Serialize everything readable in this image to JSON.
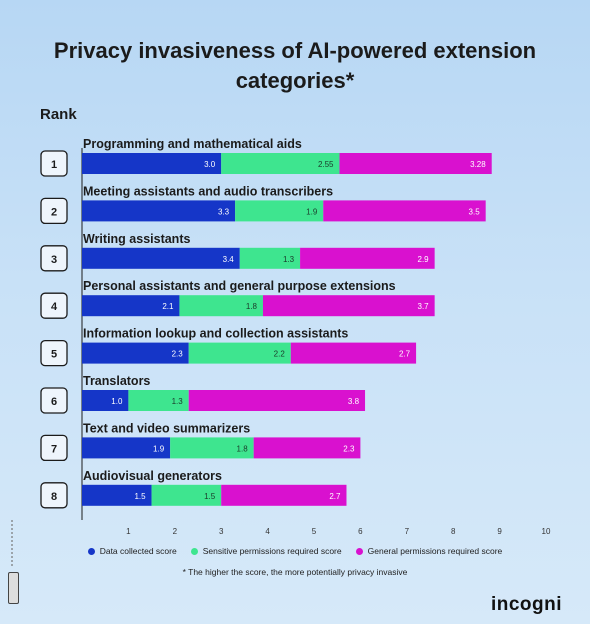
{
  "title": "Privacy invasiveness of AI-powered extension categories*",
  "rank_label": "Rank",
  "colors": {
    "data_collected": "#1536c8",
    "sensitive": "#3ee58f",
    "general": "#d911cf"
  },
  "legend": {
    "data_collected": "Data collected score",
    "sensitive": "Sensitive permissions required score",
    "general": "General permissions required score"
  },
  "footnote": "* The higher the score, the more potentially privacy invasive",
  "logo": "incogni",
  "chart_data": {
    "type": "bar",
    "orientation": "horizontal",
    "stacked": true,
    "title": "Privacy invasiveness of AI-powered extension categories*",
    "categories": [
      "Programming and mathematical aids",
      "Meeting assistants and audio transcribers",
      "Writing assistants",
      "Personal assistants and general purpose extensions",
      "Information lookup and collection assistants",
      "Translators",
      "Text and video summarizers",
      "Audiovisual generators"
    ],
    "ranks": [
      "1",
      "2",
      "3",
      "4",
      "5",
      "6",
      "7",
      "8"
    ],
    "series": [
      {
        "name": "Data collected score",
        "values": [
          3.0,
          3.3,
          3.4,
          2.1,
          2.3,
          1.0,
          1.9,
          1.5
        ],
        "labels": [
          "3.0",
          "3.3",
          "3.4",
          "2.1",
          "2.3",
          "1.0",
          "1.9",
          "1.5"
        ]
      },
      {
        "name": "Sensitive permissions required score",
        "values": [
          2.55,
          1.9,
          1.3,
          1.8,
          2.2,
          1.3,
          1.8,
          1.5
        ],
        "labels": [
          "2.55",
          "1.9",
          "1.3",
          "1.8",
          "2.2",
          "1.3",
          "1.8",
          "1.5"
        ]
      },
      {
        "name": "General permissions required score",
        "values": [
          3.28,
          3.5,
          2.9,
          3.7,
          2.7,
          3.8,
          2.3,
          2.7
        ],
        "labels": [
          "3.28",
          "3.5",
          "2.9",
          "3.7",
          "2.7",
          "3.8",
          "2.3",
          "2.7"
        ]
      }
    ],
    "xticks": [
      "1",
      "2",
      "3",
      "4",
      "5",
      "6",
      "7",
      "8",
      "9",
      "10"
    ],
    "xlim": [
      0,
      10
    ],
    "grid": false,
    "legend_position": "bottom"
  }
}
